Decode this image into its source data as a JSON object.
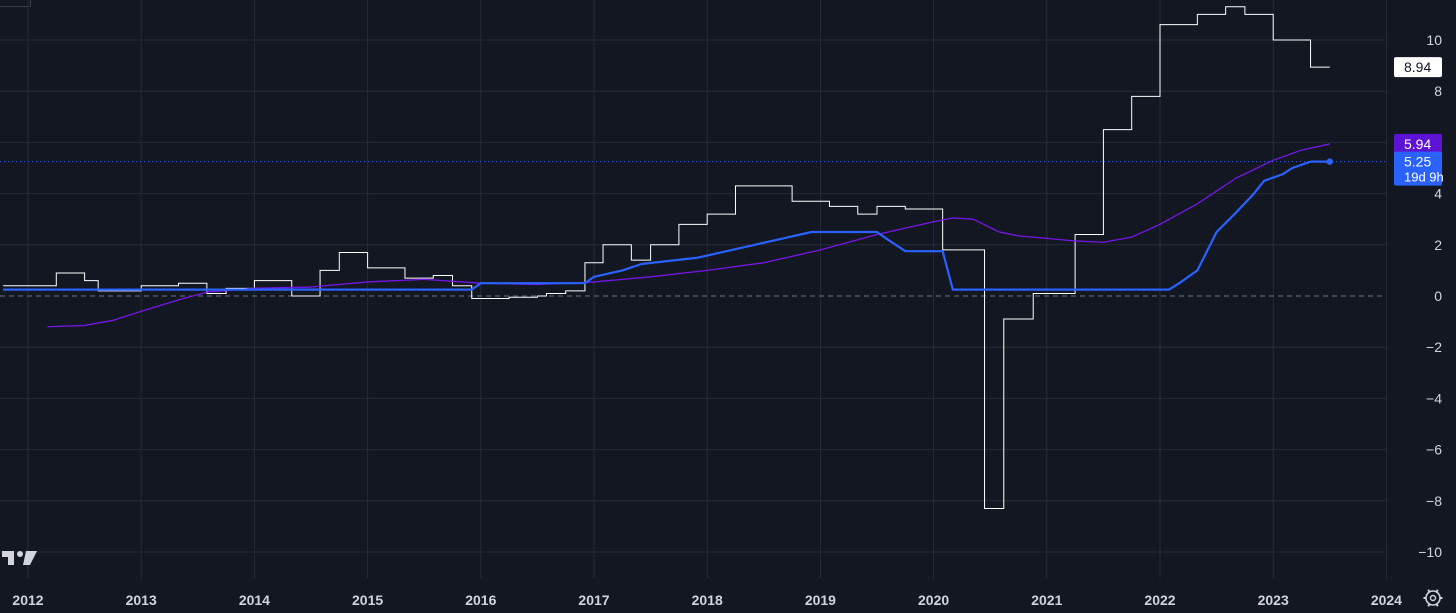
{
  "chart_data": {
    "type": "line",
    "x_ticks": [
      "2012",
      "2013",
      "2014",
      "2015",
      "2016",
      "2017",
      "2018",
      "2019",
      "2020",
      "2021",
      "2022",
      "2023",
      "2024"
    ],
    "y_ticks": [
      "10",
      "8",
      "4",
      "2",
      "0",
      "−2",
      "−4",
      "−6",
      "−8",
      "−10"
    ],
    "ylim": [
      -11,
      11
    ],
    "xlim": [
      2011.78,
      2023.9
    ],
    "grid": true,
    "zero_line": "dashed",
    "series": [
      {
        "color": "#ffffff",
        "style": "step",
        "points": [
          [
            2011.78,
            0.4
          ],
          [
            2012.25,
            0.9
          ],
          [
            2012.5,
            0.6
          ],
          [
            2012.62,
            0.2
          ],
          [
            2013.0,
            0.4
          ],
          [
            2013.33,
            0.5
          ],
          [
            2013.58,
            0.1
          ],
          [
            2013.75,
            0.3
          ],
          [
            2014.0,
            0.6
          ],
          [
            2014.33,
            0.0
          ],
          [
            2014.58,
            1.0
          ],
          [
            2014.75,
            1.7
          ],
          [
            2015.0,
            1.1
          ],
          [
            2015.33,
            0.7
          ],
          [
            2015.58,
            0.8
          ],
          [
            2015.75,
            0.4
          ],
          [
            2015.92,
            -0.1
          ],
          [
            2016.25,
            -0.05
          ],
          [
            2016.5,
            0.0
          ],
          [
            2016.58,
            0.1
          ],
          [
            2016.75,
            0.2
          ],
          [
            2016.92,
            1.3
          ],
          [
            2017.08,
            2.0
          ],
          [
            2017.33,
            1.4
          ],
          [
            2017.5,
            2.0
          ],
          [
            2017.75,
            2.8
          ],
          [
            2018.0,
            3.2
          ],
          [
            2018.25,
            4.3
          ],
          [
            2018.75,
            3.7
          ],
          [
            2019.08,
            3.5
          ],
          [
            2019.33,
            3.2
          ],
          [
            2019.5,
            3.5
          ],
          [
            2019.75,
            3.4
          ],
          [
            2020.08,
            1.8
          ],
          [
            2020.45,
            -8.3
          ],
          [
            2020.62,
            -0.9
          ],
          [
            2020.88,
            0.1
          ],
          [
            2021.1,
            0.1
          ],
          [
            2021.25,
            2.4
          ],
          [
            2021.5,
            6.5
          ],
          [
            2021.75,
            7.8
          ],
          [
            2022.0,
            10.6
          ],
          [
            2022.33,
            11.0
          ],
          [
            2022.58,
            11.3
          ],
          [
            2022.75,
            11.0
          ],
          [
            2023.0,
            10.0
          ],
          [
            2023.33,
            8.94
          ],
          [
            2023.5,
            8.94
          ]
        ]
      },
      {
        "color": "#7417e6",
        "style": "smooth",
        "points": [
          [
            2012.17,
            -1.2
          ],
          [
            2012.5,
            -1.15
          ],
          [
            2012.75,
            -0.95
          ],
          [
            2013.0,
            -0.6
          ],
          [
            2013.33,
            -0.15
          ],
          [
            2013.58,
            0.15
          ],
          [
            2014.0,
            0.3
          ],
          [
            2014.5,
            0.35
          ],
          [
            2015.0,
            0.55
          ],
          [
            2015.5,
            0.65
          ],
          [
            2016.0,
            0.5
          ],
          [
            2016.5,
            0.45
          ],
          [
            2017.0,
            0.55
          ],
          [
            2017.5,
            0.75
          ],
          [
            2018.0,
            1.0
          ],
          [
            2018.5,
            1.3
          ],
          [
            2019.0,
            1.8
          ],
          [
            2019.5,
            2.4
          ],
          [
            2020.0,
            2.9
          ],
          [
            2020.17,
            3.05
          ],
          [
            2020.35,
            3.0
          ],
          [
            2020.58,
            2.5
          ],
          [
            2020.75,
            2.35
          ],
          [
            2021.0,
            2.25
          ],
          [
            2021.25,
            2.15
          ],
          [
            2021.5,
            2.1
          ],
          [
            2021.75,
            2.3
          ],
          [
            2022.0,
            2.8
          ],
          [
            2022.33,
            3.6
          ],
          [
            2022.67,
            4.6
          ],
          [
            2023.0,
            5.3
          ],
          [
            2023.25,
            5.7
          ],
          [
            2023.5,
            5.94
          ]
        ]
      },
      {
        "color": "#2962ff",
        "style": "line",
        "points": [
          [
            2011.78,
            0.25
          ],
          [
            2015.92,
            0.25
          ],
          [
            2016.0,
            0.5
          ],
          [
            2016.92,
            0.5
          ],
          [
            2017.0,
            0.75
          ],
          [
            2017.25,
            1.0
          ],
          [
            2017.42,
            1.25
          ],
          [
            2017.92,
            1.5
          ],
          [
            2018.17,
            1.75
          ],
          [
            2018.42,
            2.0
          ],
          [
            2018.67,
            2.25
          ],
          [
            2018.92,
            2.5
          ],
          [
            2019.5,
            2.5
          ],
          [
            2019.58,
            2.25
          ],
          [
            2019.75,
            1.75
          ],
          [
            2020.08,
            1.75
          ],
          [
            2020.17,
            0.25
          ],
          [
            2022.08,
            0.25
          ],
          [
            2022.17,
            0.5
          ],
          [
            2022.33,
            1.0
          ],
          [
            2022.5,
            2.5
          ],
          [
            2022.67,
            3.25
          ],
          [
            2022.83,
            4.0
          ],
          [
            2022.92,
            4.5
          ],
          [
            2023.08,
            4.75
          ],
          [
            2023.17,
            5.0
          ],
          [
            2023.33,
            5.25
          ],
          [
            2023.5,
            5.25
          ]
        ]
      }
    ],
    "price_labels": [
      {
        "text": "8.94",
        "value": 8.94,
        "bg": "#ffffff",
        "fg": "#131722"
      },
      {
        "text": "5.94",
        "value": 5.94,
        "bg": "#5d13d3",
        "fg": "#ffffff"
      },
      {
        "text": "5.25",
        "sub": "19d 9h",
        "value": 5.25,
        "bg": "#2962ff",
        "fg": "#ffffff"
      }
    ],
    "logo": "TradingView",
    "settings_icon": "gear-icon",
    "colors": {
      "background": "#131722",
      "grid": "#262b38",
      "axis_text": "#d1d4dc",
      "zero_line": "#6b7080",
      "price_line": "#2962ff"
    }
  }
}
